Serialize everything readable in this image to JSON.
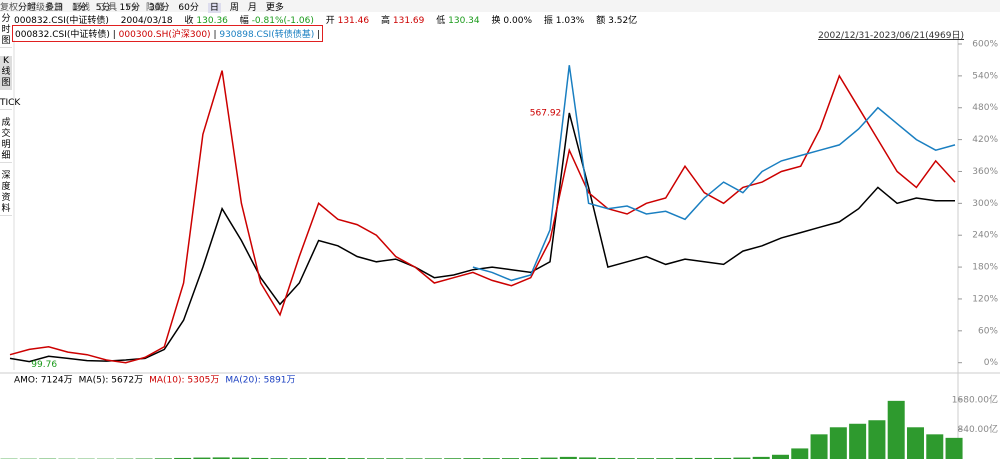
{
  "toolbar": {
    "periods": [
      "分时",
      "多日",
      "1分",
      "5分",
      "15分",
      "30分",
      "60分",
      "日",
      "周",
      "月",
      "更多"
    ],
    "tools": [
      "复权",
      "超级叠加",
      "画线",
      "工具",
      "F9",
      "隐藏"
    ]
  },
  "side_tabs": [
    "分时图",
    "K线图",
    "TICK",
    "成交明细",
    "深度资料"
  ],
  "info": {
    "code": "000832.CSI(中证转债)",
    "date": "2004/03/18",
    "close_label": "收",
    "close": "130.36",
    "change_label": "幅",
    "change": "-0.81%(-1.06)",
    "open_label": "开",
    "open": "131.46",
    "high_label": "高",
    "high": "131.69",
    "low_label": "低",
    "low": "130.34",
    "turnover_label": "换",
    "turnover": "0.00%",
    "amplitude_label": "振",
    "amplitude": "1.03%",
    "amount_label": "额",
    "amount": "3.52亿"
  },
  "range_label": "2002/12/31-2023/06/21(4969日)",
  "chart_data": {
    "type": "line",
    "series": [
      {
        "name": "000832.CSI(中证转债)",
        "color": "#000000",
        "values": [
          8,
          2,
          12,
          8,
          4,
          3,
          5,
          8,
          25,
          80,
          180,
          290,
          230,
          160,
          110,
          150,
          230,
          220,
          200,
          190,
          195,
          180,
          160,
          165,
          175,
          180,
          175,
          170,
          190,
          470,
          330,
          180,
          190,
          200,
          185,
          195,
          190,
          185,
          210,
          220,
          235,
          245,
          255,
          265,
          290,
          330,
          300,
          310,
          305,
          305
        ]
      },
      {
        "name": "000300.SH(沪深300)",
        "color": "#cc0000",
        "values": [
          15,
          25,
          30,
          20,
          15,
          5,
          0,
          10,
          30,
          150,
          430,
          550,
          300,
          150,
          90,
          200,
          300,
          270,
          260,
          240,
          200,
          180,
          150,
          160,
          170,
          155,
          145,
          160,
          230,
          400,
          320,
          290,
          280,
          300,
          310,
          370,
          320,
          300,
          330,
          340,
          360,
          370,
          440,
          540,
          480,
          420,
          360,
          330,
          380,
          340
        ]
      },
      {
        "name": "930898.CSI(转债债基)",
        "color": "#1a7fc1",
        "values": [
          null,
          null,
          null,
          null,
          null,
          null,
          null,
          null,
          null,
          null,
          null,
          null,
          null,
          null,
          null,
          null,
          null,
          null,
          null,
          null,
          null,
          null,
          null,
          null,
          180,
          170,
          155,
          165,
          250,
          560,
          300,
          290,
          295,
          280,
          285,
          270,
          310,
          340,
          320,
          360,
          380,
          390,
          400,
          410,
          440,
          480,
          450,
          420,
          400,
          410
        ]
      }
    ],
    "ylim": [
      -10,
      600
    ],
    "yticks": [
      {
        "value": 600,
        "label": "600%"
      },
      {
        "value": 540,
        "label": "540%"
      },
      {
        "value": 480,
        "label": "480%"
      },
      {
        "value": 420,
        "label": "420%"
      },
      {
        "value": 360,
        "label": "360%"
      },
      {
        "value": 300,
        "label": "300%"
      },
      {
        "value": 240,
        "label": "240%"
      },
      {
        "value": 180,
        "label": "180%"
      },
      {
        "value": 120,
        "label": "120%"
      },
      {
        "value": 60,
        "label": "60%"
      },
      {
        "value": 0,
        "label": "0%"
      }
    ],
    "annotations": {
      "high": "567.92",
      "low": "99.76"
    },
    "volume": {
      "legend": [
        {
          "text": "AMO: 7124万",
          "color": "#000000"
        },
        {
          "text": "MA(5): 5672万",
          "color": "#000000"
        },
        {
          "text": "MA(10): 5305万",
          "color": "#cc0000"
        },
        {
          "text": "MA(20): 5891万",
          "color": "#1a3fc1"
        }
      ],
      "color": "#2e9a2e",
      "values": [
        10,
        10,
        12,
        10,
        10,
        10,
        12,
        14,
        20,
        30,
        40,
        45,
        40,
        30,
        25,
        25,
        30,
        28,
        25,
        22,
        22,
        20,
        20,
        22,
        25,
        25,
        25,
        28,
        40,
        60,
        45,
        30,
        25,
        25,
        25,
        30,
        30,
        30,
        40,
        60,
        120,
        300,
        700,
        900,
        1000,
        1100,
        1650,
        900,
        700,
        600
      ],
      "ylim": [
        0,
        2100
      ],
      "yticks": [
        {
          "value": 1680,
          "label": "1680.00亿"
        },
        {
          "value": 840,
          "label": "840.00亿"
        }
      ]
    }
  }
}
